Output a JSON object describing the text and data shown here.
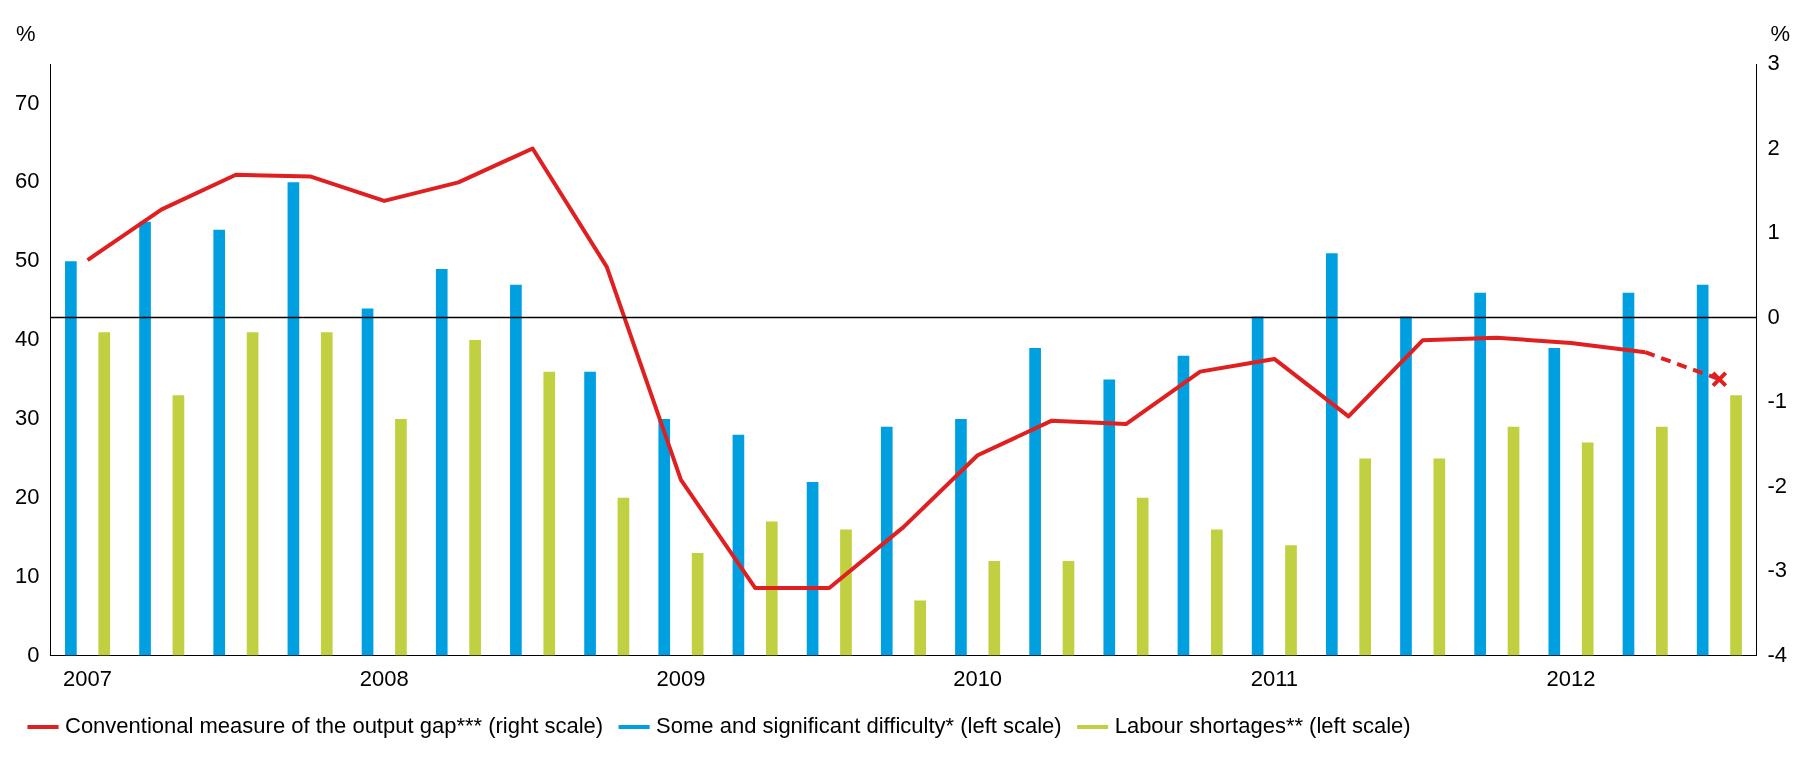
{
  "chart_data": {
    "type": "bar",
    "categories": [
      "2007",
      null,
      null,
      null,
      "2008",
      null,
      null,
      null,
      "2009",
      null,
      null,
      null,
      "2010",
      null,
      null,
      null,
      "2011",
      null,
      null,
      null,
      "2012",
      null,
      null
    ],
    "ylabel": "%",
    "y2label": "%",
    "ylim": [
      0,
      75
    ],
    "yticks": [
      0,
      10,
      20,
      30,
      40,
      50,
      60,
      70
    ],
    "y2lim": [
      -4,
      3
    ],
    "y2ticks": [
      -4,
      -3,
      -2,
      -1,
      0,
      1,
      2,
      3
    ],
    "series": [
      {
        "name": "Conventional measure of the output gap*** (right scale)",
        "type": "line",
        "axis": "y2",
        "color": "#e02020",
        "line_style": "solid",
        "marker": "none",
        "values": [
          0.68,
          1.28,
          1.69,
          1.67,
          1.38,
          1.6,
          2.0,
          0.6,
          -1.92,
          -3.2,
          -3.2,
          -2.48,
          -1.63,
          -1.22,
          -1.26,
          -0.64,
          -0.49,
          -1.17,
          -0.27,
          -0.24,
          -0.3,
          -0.41,
          null
        ]
      },
      {
        "name": "Some and significant difficulty* (left scale)",
        "color": "#00a0e0",
        "values": [
          50,
          55,
          54,
          60,
          44,
          49,
          47,
          36,
          30,
          28,
          22,
          29,
          30,
          39,
          35,
          38,
          43,
          51,
          43,
          46,
          39,
          46,
          47
        ]
      },
      {
        "name": "Labour shortages** (left scale)",
        "color": "#c0d040",
        "values": [
          41,
          33,
          41,
          41,
          30,
          40,
          36,
          20,
          13,
          17,
          16,
          7,
          12,
          12,
          20,
          16,
          14,
          25,
          25,
          29,
          27,
          29,
          33
        ]
      },
      {
        "type": "line",
        "axis": "y2",
        "color": "#e02020",
        "line_style": "dashed",
        "marker": "cross",
        "values": [
          null,
          null,
          null,
          null,
          null,
          null,
          null,
          null,
          null,
          null,
          null,
          null,
          null,
          null,
          null,
          null,
          null,
          null,
          null,
          null,
          null,
          -0.41,
          -0.73
        ]
      }
    ],
    "ref_lines": [
      {
        "axis": "y2",
        "value": 0,
        "color": "#000000"
      }
    ],
    "grid": false,
    "legend": "bottom"
  }
}
